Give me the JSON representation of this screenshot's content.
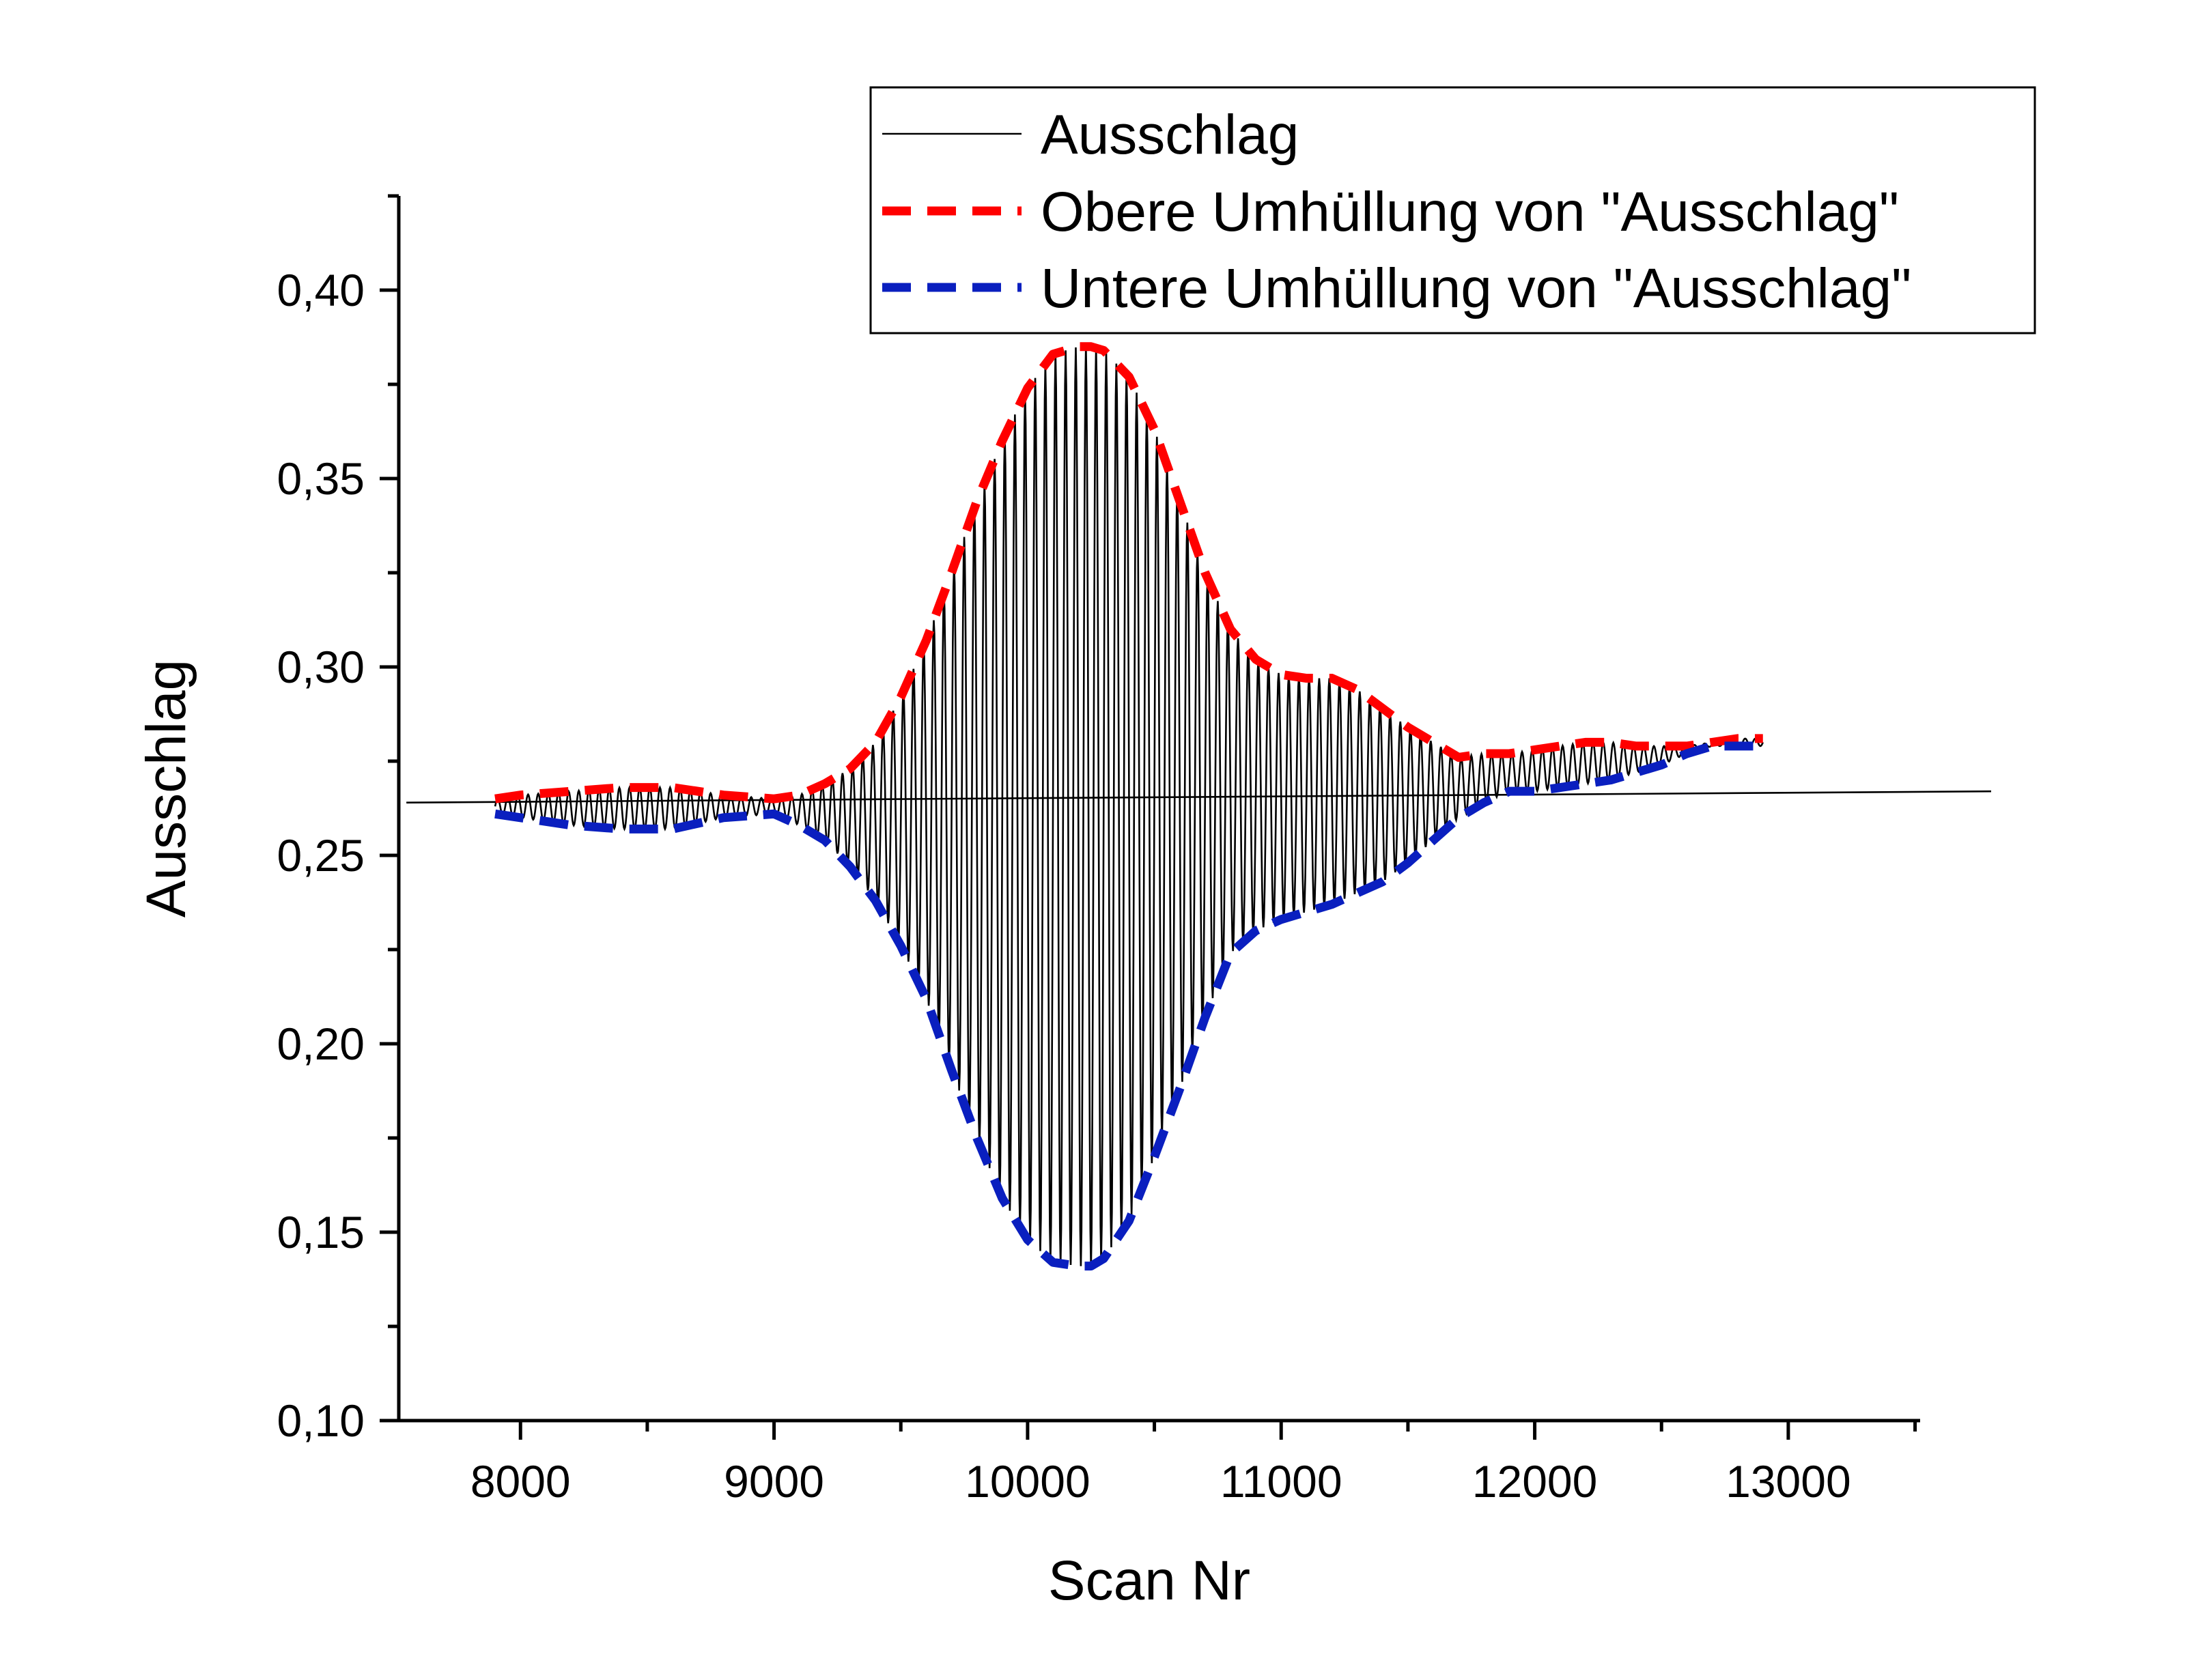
{
  "chart_data": {
    "type": "line",
    "title": "",
    "xlabel": "Scan Nr",
    "ylabel": "Ausschlag",
    "xlim": [
      7520,
      13520
    ],
    "ylim": [
      0.1,
      0.425
    ],
    "xticks": [
      8000,
      9000,
      10000,
      11000,
      12000,
      13000
    ],
    "xtick_labels": [
      "8000",
      "9000",
      "10000",
      "11000",
      "12000",
      "13000"
    ],
    "yticks": [
      0.1,
      0.15,
      0.2,
      0.25,
      0.3,
      0.35,
      0.4
    ],
    "ytick_labels": [
      "0,10",
      "0,15",
      "0,20",
      "0,25",
      "0,30",
      "0,35",
      "0,40"
    ],
    "grid": false,
    "legend_position": "top-right",
    "series": [
      {
        "name": "Ausschlag",
        "color": "#000000",
        "style": "solid",
        "oscillation_period": 40,
        "baseline": {
          "x": [
            7550,
            13800
          ],
          "y": [
            0.264,
            0.267
          ]
        }
      },
      {
        "name": "Obere Umhüllung von \"Ausschlag\"",
        "color": "#ff0000",
        "style": "dashed",
        "x": [
          7900,
          8000,
          8200,
          8400,
          8600,
          8800,
          9000,
          9100,
          9200,
          9300,
          9400,
          9500,
          9600,
          9700,
          9800,
          9900,
          10000,
          10100,
          10200,
          10250,
          10300,
          10400,
          10500,
          10600,
          10700,
          10800,
          10900,
          11000,
          11100,
          11200,
          11300,
          11400,
          11500,
          11600,
          11700,
          11800,
          11900,
          12000,
          12100,
          12200,
          12300,
          12400,
          12500,
          12600,
          12700,
          12800,
          12900
        ],
        "y": [
          0.265,
          0.266,
          0.267,
          0.268,
          0.268,
          0.266,
          0.265,
          0.266,
          0.269,
          0.273,
          0.28,
          0.292,
          0.307,
          0.325,
          0.344,
          0.36,
          0.374,
          0.383,
          0.385,
          0.385,
          0.384,
          0.377,
          0.363,
          0.344,
          0.325,
          0.31,
          0.302,
          0.298,
          0.297,
          0.297,
          0.294,
          0.289,
          0.284,
          0.28,
          0.276,
          0.277,
          0.277,
          0.278,
          0.279,
          0.28,
          0.28,
          0.279,
          0.279,
          0.279,
          0.28,
          0.281,
          0.281
        ]
      },
      {
        "name": "Untere Umhüllung von \"Ausschlag\"",
        "color": "#0a1fbf",
        "style": "dashed",
        "x": [
          7900,
          8000,
          8200,
          8400,
          8600,
          8800,
          9000,
          9100,
          9200,
          9300,
          9400,
          9500,
          9600,
          9700,
          9800,
          9900,
          10000,
          10100,
          10200,
          10250,
          10300,
          10400,
          10500,
          10600,
          10700,
          10800,
          10900,
          11000,
          11100,
          11200,
          11300,
          11400,
          11500,
          11600,
          11700,
          11800,
          11900,
          12000,
          12100,
          12200,
          12300,
          12400,
          12500,
          12600,
          12700,
          12800,
          12900
        ],
        "y": [
          0.261,
          0.26,
          0.258,
          0.257,
          0.257,
          0.26,
          0.261,
          0.258,
          0.254,
          0.247,
          0.238,
          0.226,
          0.212,
          0.193,
          0.175,
          0.159,
          0.148,
          0.142,
          0.141,
          0.141,
          0.143,
          0.153,
          0.17,
          0.188,
          0.207,
          0.224,
          0.23,
          0.233,
          0.235,
          0.237,
          0.24,
          0.243,
          0.248,
          0.254,
          0.26,
          0.264,
          0.267,
          0.267,
          0.268,
          0.269,
          0.27,
          0.272,
          0.274,
          0.277,
          0.279,
          0.279,
          0.279
        ]
      }
    ]
  }
}
